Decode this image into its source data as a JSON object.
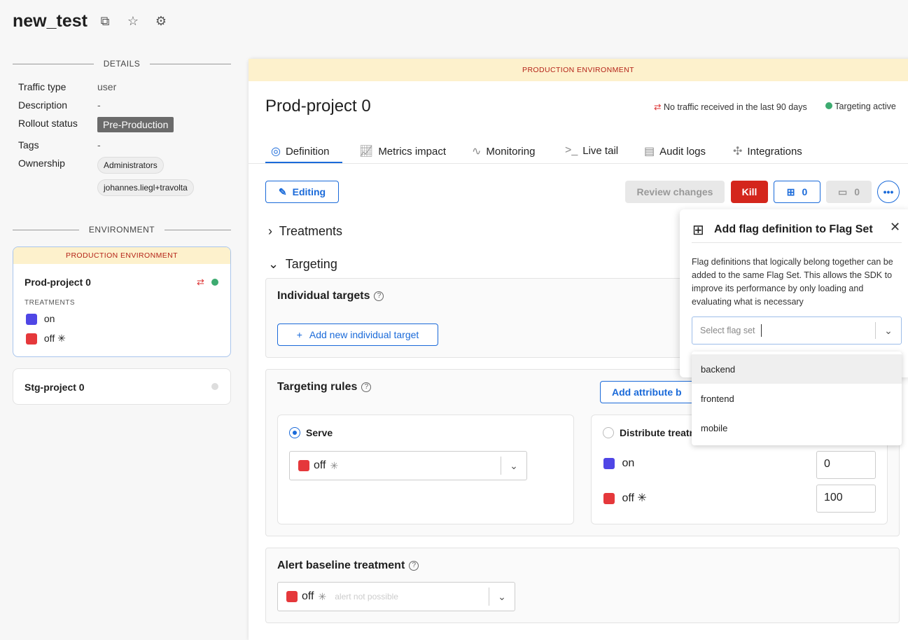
{
  "header": {
    "title": "new_test",
    "icons": [
      "copy-icon",
      "star-icon",
      "gear-icon"
    ]
  },
  "details": {
    "heading": "DETAILS",
    "rows": [
      {
        "label": "Traffic type",
        "value": "user"
      },
      {
        "label": "Description",
        "value": "-"
      },
      {
        "label": "Rollout status",
        "value": "Pre-Production"
      },
      {
        "label": "Tags",
        "value": "-"
      },
      {
        "label": "Ownership",
        "values": [
          "Administrators",
          "johannes.liegl+travolta"
        ]
      }
    ]
  },
  "environment": {
    "heading": "ENVIRONMENT",
    "prod_banner": "PRODUCTION ENVIRONMENT",
    "prod": {
      "name": "Prod-project 0",
      "treatments_label": "TREATMENTS",
      "treatments": [
        {
          "name": "on",
          "color": "#4f46e5"
        },
        {
          "name": "off",
          "color": "#e5383b",
          "default": true
        }
      ]
    },
    "stg": {
      "name": "Stg-project 0"
    }
  },
  "main": {
    "banner": "PRODUCTION ENVIRONMENT",
    "title": "Prod-project 0",
    "traffic_status": "No traffic received in the last 90 days",
    "targeting_status": "Targeting active",
    "tabs": [
      {
        "label": "Definition",
        "icon": "target-icon",
        "active": true
      },
      {
        "label": "Metrics impact",
        "icon": "chart-icon"
      },
      {
        "label": "Monitoring",
        "icon": "pulse-icon"
      },
      {
        "label": "Live tail",
        "icon": "terminal-icon"
      },
      {
        "label": "Audit logs",
        "icon": "audit-icon"
      },
      {
        "label": "Integrations",
        "icon": "puzzle-icon"
      }
    ],
    "editing": "Editing",
    "review": "Review changes",
    "kill": "Kill",
    "flagsets_count": "0",
    "schedule_count": "0",
    "treatments": "Treatments",
    "targeting": "Targeting",
    "individual_targets": "Individual targets",
    "add_individual": "Add new individual target",
    "targeting_rules": "Targeting rules",
    "add_attribute": "Add attribute b",
    "serve": "Serve",
    "serve_value": "off",
    "distribute": "Distribute treatm",
    "dist": [
      {
        "name": "on",
        "value": "0"
      },
      {
        "name": "off",
        "value": "100"
      }
    ],
    "alert_baseline": "Alert baseline treatment",
    "alert_value": "off",
    "alert_hint": "alert not possible"
  },
  "popover": {
    "title": "Add flag definition to Flag Set",
    "description": "Flag definitions that logically belong together can be added to the same Flag Set. This allows the SDK to improve its performance by only loading and evaluating what is necessary",
    "placeholder": "Select flag set",
    "options": [
      "backend",
      "frontend",
      "mobile"
    ]
  }
}
